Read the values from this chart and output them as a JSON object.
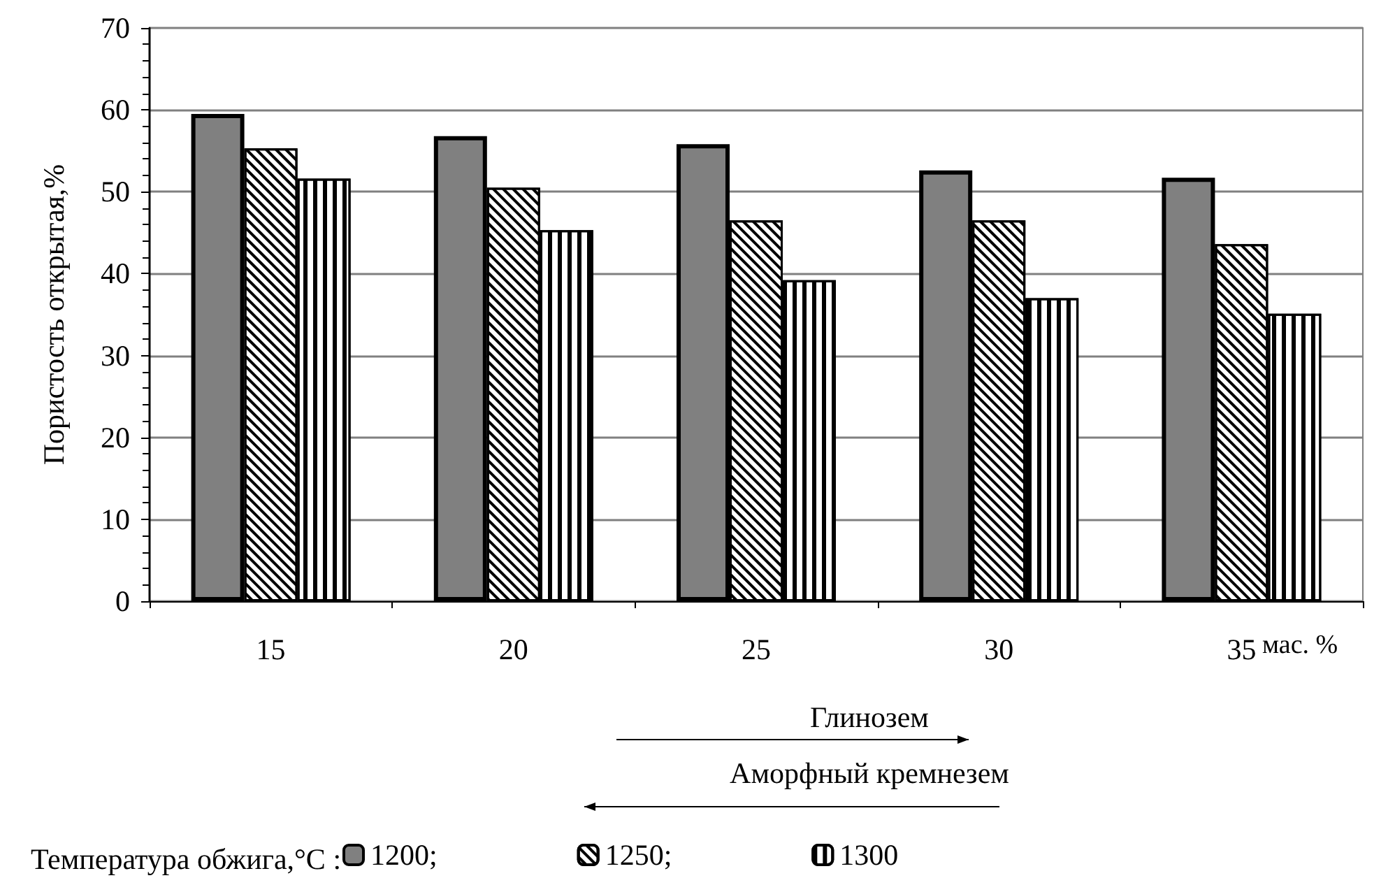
{
  "chart_data": {
    "type": "bar",
    "ylabel": "Пористость открытая,%",
    "xlabel": "мас. %",
    "categories": [
      "15",
      "20",
      "25",
      "30",
      "35"
    ],
    "series": [
      {
        "name": "1200;",
        "color": "#808080",
        "values": [
          59.5,
          56.8,
          55.8,
          52.6,
          51.7
        ]
      },
      {
        "name": "1250;",
        "color": "#ffffff",
        "values": [
          55.3,
          50.5,
          46.5,
          46.5,
          43.6
        ]
      },
      {
        "name": "1300",
        "color": "#ffffff",
        "values": [
          51.6,
          45.3,
          39.2,
          37.0,
          35.1
        ]
      }
    ],
    "ylim": [
      0,
      70
    ],
    "yticks": [
      0,
      10,
      20,
      30,
      40,
      50,
      60,
      70
    ],
    "grid": "y",
    "legend": "bottom",
    "legend_title": "Температура обжига,°C :",
    "annotations": [
      "Глинозем",
      "Аморфный кремнезем"
    ]
  }
}
